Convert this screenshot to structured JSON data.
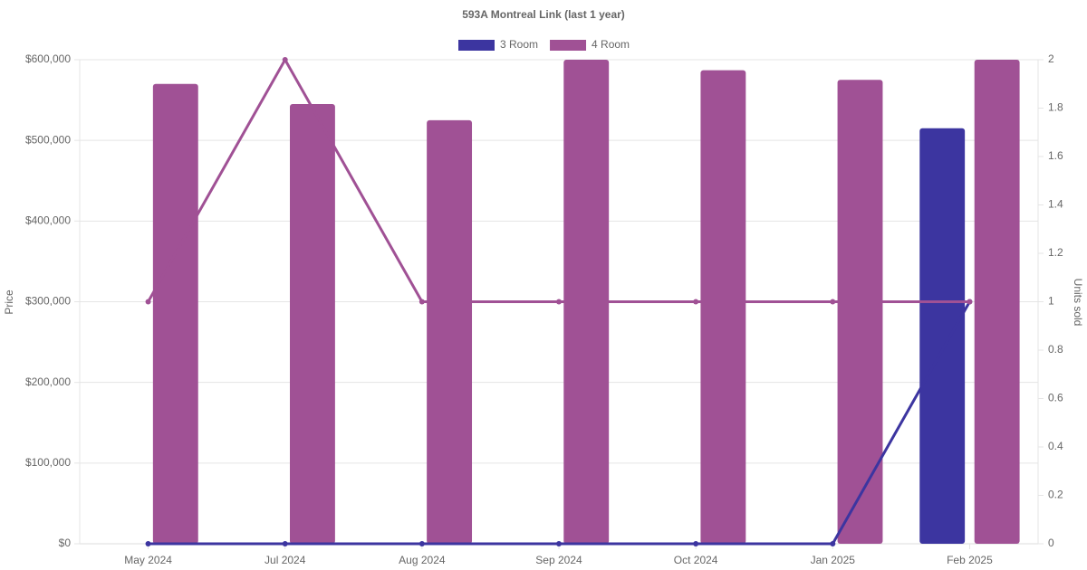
{
  "chart_data": {
    "type": "bar",
    "title": "593A Montreal Link (last 1 year)",
    "categories": [
      "May 2024",
      "Jul 2024",
      "Aug 2024",
      "Sep 2024",
      "Oct 2024",
      "Jan 2025",
      "Feb 2025"
    ],
    "series": [
      {
        "name": "3 Room",
        "color": "#3c35a0",
        "values": [
          null,
          null,
          null,
          null,
          null,
          null,
          515000
        ],
        "units_sold": [
          0,
          0,
          0,
          0,
          0,
          0,
          1
        ]
      },
      {
        "name": "4 Room",
        "color": "#a05195",
        "values": [
          570000,
          545000,
          525000,
          600000,
          587000,
          575000,
          600000
        ],
        "units_sold": [
          1,
          2,
          1,
          1,
          1,
          1,
          1
        ]
      }
    ],
    "y_label": "Price",
    "y2_label": "Units sold",
    "ylim": [
      0,
      600000
    ],
    "yticks": [
      {
        "value": 0,
        "label": "$0"
      },
      {
        "value": 100000,
        "label": "$100,000"
      },
      {
        "value": 200000,
        "label": "$200,000"
      },
      {
        "value": 300000,
        "label": "$300,000"
      },
      {
        "value": 400000,
        "label": "$400,000"
      },
      {
        "value": 500000,
        "label": "$500,000"
      },
      {
        "value": 600000,
        "label": "$600,000"
      }
    ],
    "y2lim": [
      0,
      2
    ],
    "y2ticks": [
      0,
      0.2,
      0.4,
      0.6,
      0.8,
      1,
      1.2,
      1.4,
      1.6,
      1.8,
      2
    ],
    "grid": true
  }
}
